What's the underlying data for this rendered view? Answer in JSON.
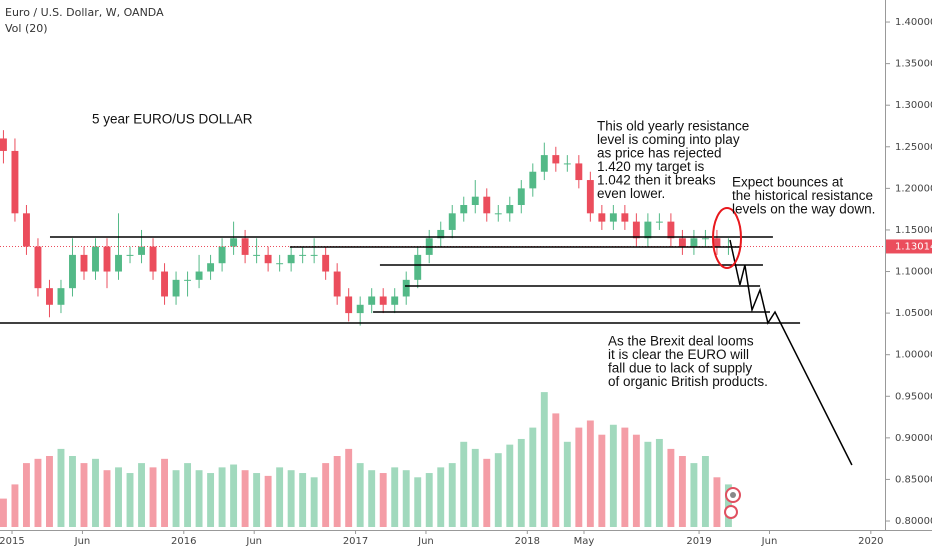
{
  "chart_data": {
    "type": "candlestick",
    "title": "Euro / U.S. Dollar, W, OANDA",
    "volume_label": "Vol (20)",
    "x": [
      2014.95,
      2015.017,
      2015.084,
      2015.151,
      2015.218,
      2015.285,
      2015.352,
      2015.419,
      2015.486,
      2015.553,
      2015.62,
      2015.687,
      2015.754,
      2015.821,
      2015.888,
      2015.955,
      2016.022,
      2016.089,
      2016.156,
      2016.223,
      2016.29,
      2016.357,
      2016.424,
      2016.491,
      2016.558,
      2016.625,
      2016.692,
      2016.759,
      2016.826,
      2016.893,
      2016.96,
      2017.027,
      2017.094,
      2017.161,
      2017.228,
      2017.295,
      2017.362,
      2017.429,
      2017.496,
      2017.563,
      2017.63,
      2017.697,
      2017.764,
      2017.831,
      2017.898,
      2017.965,
      2018.032,
      2018.099,
      2018.166,
      2018.233,
      2018.3,
      2018.367,
      2018.434,
      2018.501,
      2018.568,
      2018.635,
      2018.702,
      2018.769,
      2018.836,
      2018.903,
      2018.97,
      2019.037,
      2019.104,
      2019.171
    ],
    "open": [
      1.26,
      1.245,
      1.17,
      1.13,
      1.08,
      1.06,
      1.08,
      1.12,
      1.1,
      1.13,
      1.1,
      1.12,
      1.12,
      1.13,
      1.1,
      1.07,
      1.09,
      1.09,
      1.1,
      1.11,
      1.13,
      1.14,
      1.12,
      1.12,
      1.11,
      1.11,
      1.12,
      1.12,
      1.12,
      1.1,
      1.07,
      1.05,
      1.06,
      1.07,
      1.06,
      1.07,
      1.09,
      1.12,
      1.14,
      1.15,
      1.17,
      1.18,
      1.19,
      1.17,
      1.17,
      1.18,
      1.2,
      1.22,
      1.24,
      1.23,
      1.23,
      1.21,
      1.17,
      1.16,
      1.17,
      1.16,
      1.14,
      1.16,
      1.16,
      1.14,
      1.13,
      1.14,
      1.14,
      1.13
    ],
    "high": [
      1.27,
      1.26,
      1.18,
      1.14,
      1.09,
      1.09,
      1.14,
      1.13,
      1.14,
      1.14,
      1.17,
      1.13,
      1.15,
      1.14,
      1.11,
      1.1,
      1.1,
      1.12,
      1.12,
      1.14,
      1.16,
      1.15,
      1.14,
      1.13,
      1.12,
      1.13,
      1.13,
      1.14,
      1.13,
      1.11,
      1.08,
      1.07,
      1.08,
      1.08,
      1.08,
      1.1,
      1.13,
      1.15,
      1.16,
      1.18,
      1.19,
      1.21,
      1.2,
      1.18,
      1.19,
      1.21,
      1.23,
      1.255,
      1.25,
      1.24,
      1.24,
      1.22,
      1.18,
      1.18,
      1.18,
      1.17,
      1.17,
      1.17,
      1.17,
      1.15,
      1.15,
      1.15,
      1.15,
      1.14
    ],
    "low": [
      1.23,
      1.16,
      1.12,
      1.07,
      1.045,
      1.05,
      1.07,
      1.09,
      1.09,
      1.08,
      1.09,
      1.11,
      1.11,
      1.09,
      1.06,
      1.06,
      1.07,
      1.08,
      1.09,
      1.1,
      1.12,
      1.11,
      1.11,
      1.1,
      1.1,
      1.1,
      1.11,
      1.11,
      1.09,
      1.06,
      1.04,
      1.035,
      1.05,
      1.05,
      1.05,
      1.06,
      1.08,
      1.11,
      1.13,
      1.14,
      1.16,
      1.17,
      1.16,
      1.16,
      1.16,
      1.17,
      1.19,
      1.21,
      1.22,
      1.22,
      1.2,
      1.16,
      1.15,
      1.15,
      1.15,
      1.13,
      1.13,
      1.15,
      1.13,
      1.12,
      1.12,
      1.13,
      1.12,
      1.12
    ],
    "close": [
      1.245,
      1.17,
      1.13,
      1.08,
      1.06,
      1.08,
      1.12,
      1.1,
      1.13,
      1.1,
      1.12,
      1.12,
      1.13,
      1.1,
      1.07,
      1.09,
      1.09,
      1.1,
      1.11,
      1.13,
      1.14,
      1.12,
      1.12,
      1.11,
      1.11,
      1.12,
      1.12,
      1.12,
      1.1,
      1.07,
      1.05,
      1.06,
      1.07,
      1.06,
      1.07,
      1.09,
      1.12,
      1.14,
      1.15,
      1.17,
      1.18,
      1.19,
      1.17,
      1.17,
      1.18,
      1.2,
      1.22,
      1.24,
      1.23,
      1.23,
      1.21,
      1.17,
      1.16,
      1.17,
      1.16,
      1.14,
      1.16,
      1.16,
      1.14,
      1.13,
      1.14,
      1.14,
      1.13,
      1.13014
    ],
    "volume": [
      20,
      30,
      45,
      48,
      50,
      55,
      50,
      45,
      48,
      40,
      42,
      38,
      45,
      42,
      48,
      40,
      45,
      40,
      38,
      42,
      44,
      40,
      38,
      36,
      42,
      40,
      38,
      35,
      45,
      50,
      55,
      45,
      40,
      38,
      42,
      40,
      35,
      38,
      42,
      45,
      60,
      55,
      48,
      52,
      58,
      62,
      70,
      95,
      80,
      60,
      70,
      75,
      65,
      72,
      70,
      65,
      60,
      62,
      55,
      50,
      45,
      50,
      35,
      30
    ],
    "up_color": "#53b987",
    "down_color": "#eb4d5c",
    "xlim": [
      2014.93,
      2020.1
    ],
    "xticks": [
      {
        "value": 2015,
        "label": "2015"
      },
      {
        "value": 2015.41,
        "label": "Jun"
      },
      {
        "value": 2016,
        "label": "2016"
      },
      {
        "value": 2016.41,
        "label": "Jun"
      },
      {
        "value": 2017,
        "label": "2017"
      },
      {
        "value": 2017.41,
        "label": "Jun"
      },
      {
        "value": 2018,
        "label": "2018"
      },
      {
        "value": 2018.33,
        "label": "May"
      },
      {
        "value": 2019,
        "label": "2019"
      },
      {
        "value": 2019.41,
        "label": "Jun"
      },
      {
        "value": 2020,
        "label": "2020"
      }
    ],
    "ylim": [
      0.7892,
      1.4265
    ],
    "yticks": [
      {
        "value": 0.8,
        "label": "0.80000"
      },
      {
        "value": 0.85,
        "label": "0.85000"
      },
      {
        "value": 0.9,
        "label": "0.90000"
      },
      {
        "value": 0.95,
        "label": "0.95000"
      },
      {
        "value": 1.0,
        "label": "1.00000"
      },
      {
        "value": 1.05,
        "label": "1.05000"
      },
      {
        "value": 1.1,
        "label": "1.10000"
      },
      {
        "value": 1.15,
        "label": "1.15000"
      },
      {
        "value": 1.2,
        "label": "1.20000"
      },
      {
        "value": 1.25,
        "label": "1.25000"
      },
      {
        "value": 1.3,
        "label": "1.30000"
      },
      {
        "value": 1.35,
        "label": "1.35000"
      },
      {
        "value": 1.4,
        "label": "1.40000"
      }
    ],
    "volume_lim": [
      0,
      100
    ],
    "grid": false,
    "levels": [
      {
        "price": 1.1415,
        "x": [
          2015.221,
          2019.43
        ]
      },
      {
        "price": 1.1295,
        "x": [
          2016.618,
          2019.238
        ]
      },
      {
        "price": 1.1078,
        "x": [
          2017.142,
          2019.372
        ]
      },
      {
        "price": 1.0826,
        "x": [
          2017.288,
          2019.355
        ]
      },
      {
        "price": 1.0513,
        "x": [
          2017.102,
          2019.413
        ]
      },
      {
        "price": 1.0381,
        "x": [
          2014.93,
          2019.588
        ]
      }
    ],
    "projection": {
      "x": [
        2019.18,
        2019.238,
        2019.267,
        2019.308,
        2019.355,
        2019.401,
        2019.442,
        2019.89
      ],
      "y": [
        1.1379,
        1.0838,
        1.1078,
        1.0537,
        1.0778,
        1.0381,
        1.0513,
        0.8673
      ]
    },
    "annotations": [
      {
        "lines": [
          "5 year EURO/US DOLLAR"
        ]
      },
      {
        "lines": [
          "This old yearly resistance",
          "level is coming into play",
          "as price has rejected",
          "1.420 my target is",
          "1.042 then it breaks",
          "even lower."
        ]
      },
      {
        "lines": [
          "Expect bounces at",
          "the historical resistance",
          "levels on the way down."
        ]
      },
      {
        "lines": [
          "As the Brexit deal looms",
          "it is clear the EURO will",
          "fall due to lack of supply",
          "of organic British products."
        ]
      }
    ]
  }
}
